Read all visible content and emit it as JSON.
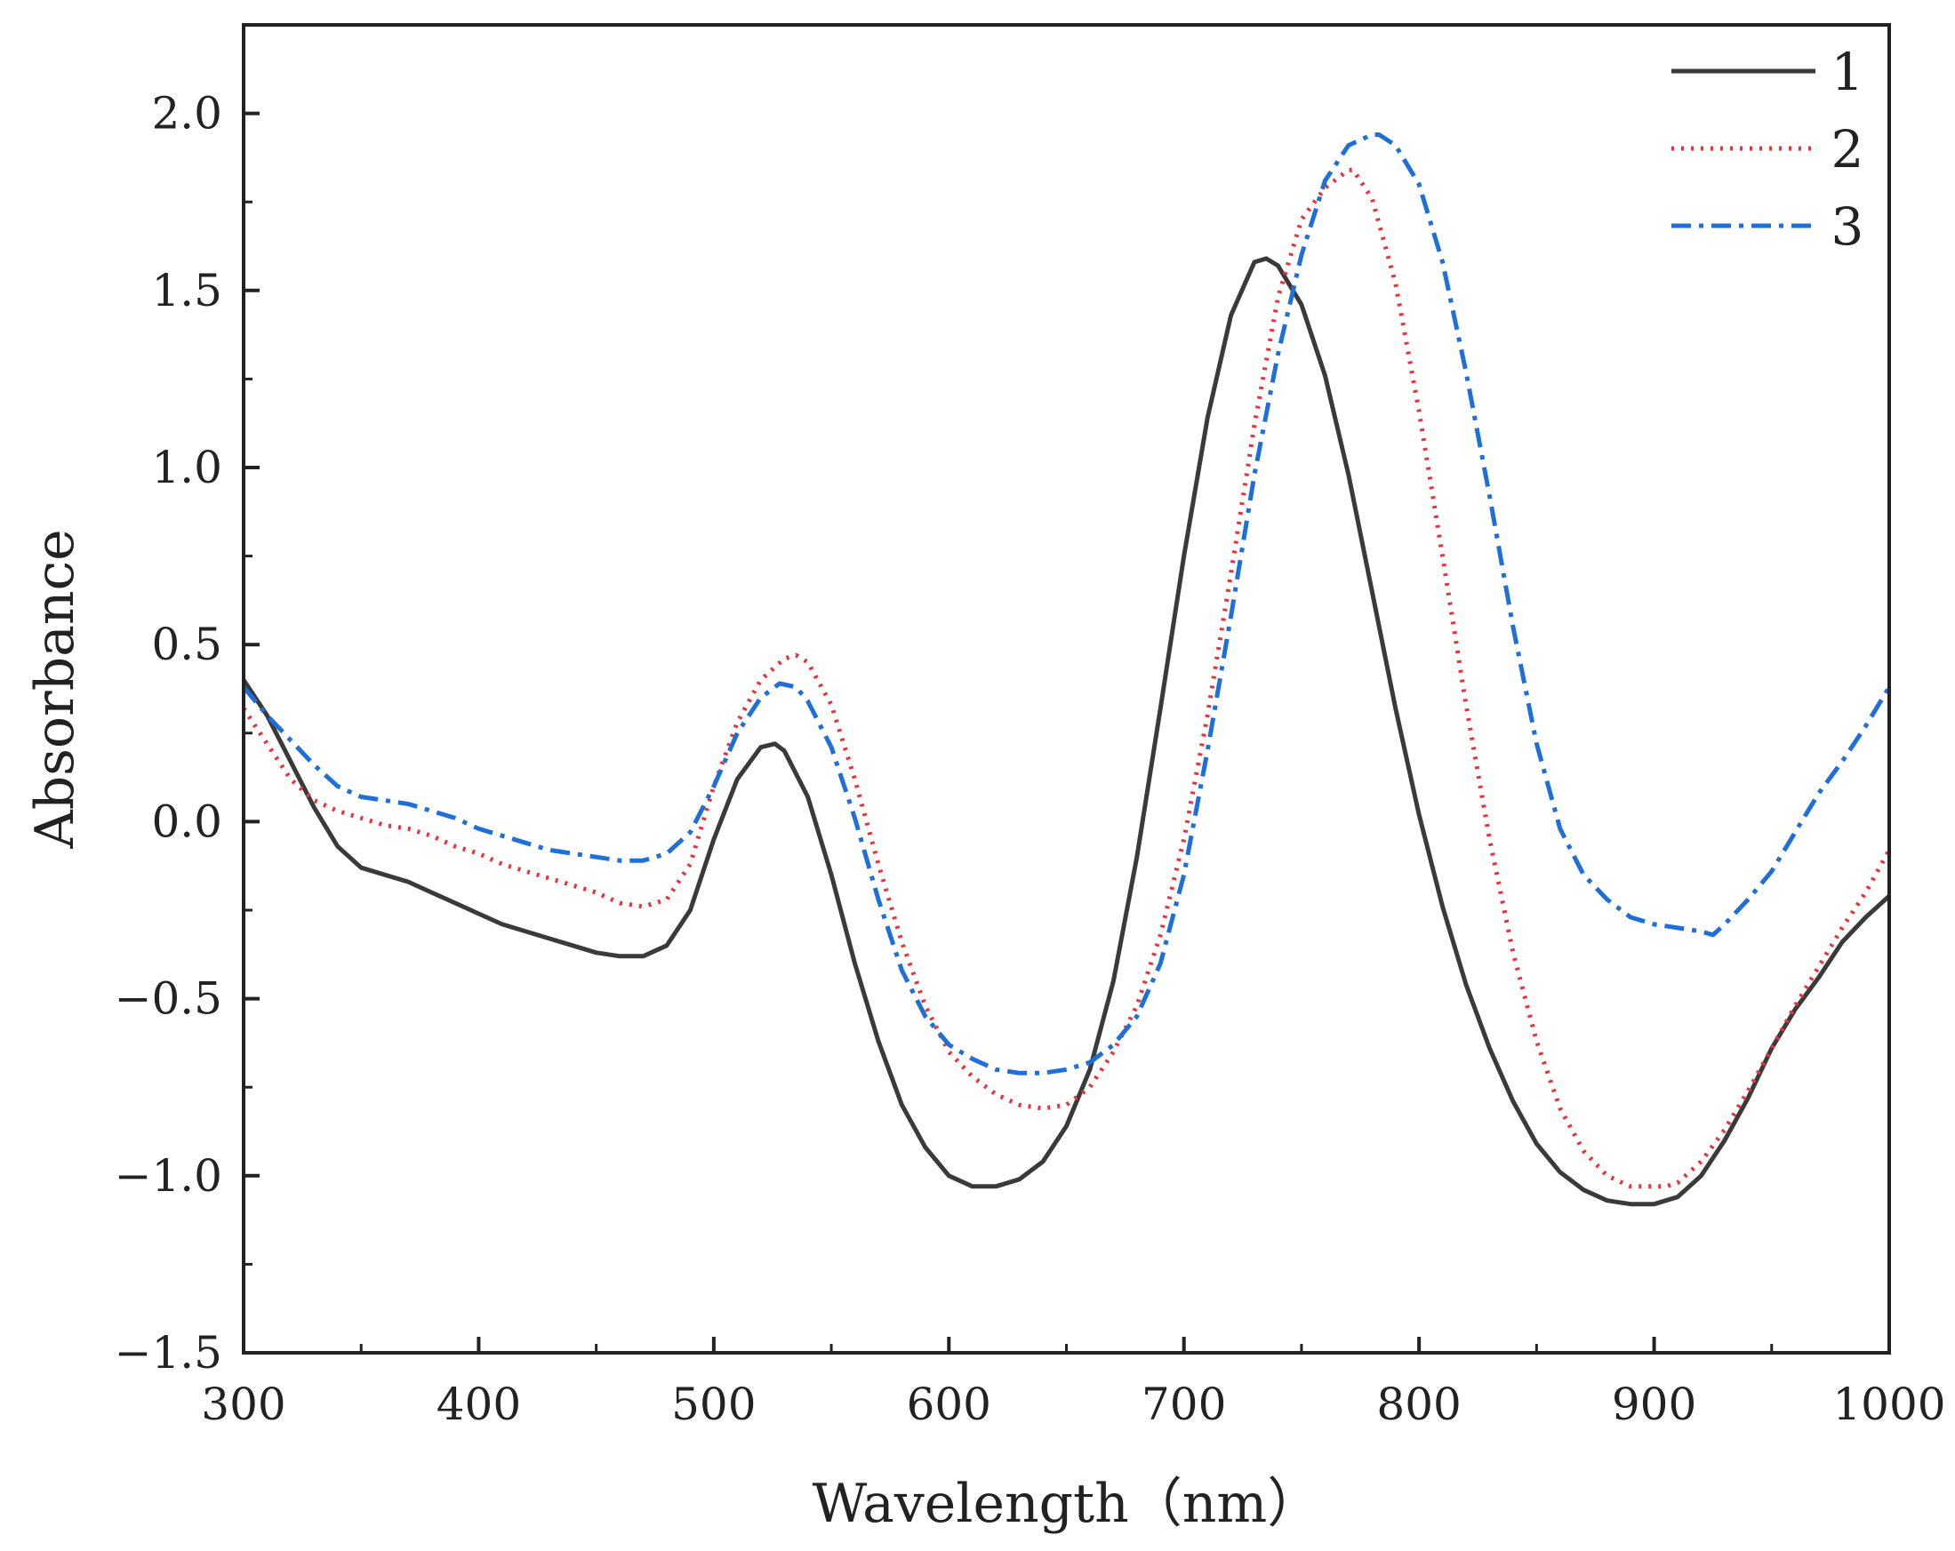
{
  "chart_data": {
    "type": "line",
    "title": "",
    "xlabel": "Wavelength（nm）",
    "ylabel": "Absorbance",
    "xlim": [
      300,
      1000
    ],
    "ylim": [
      -1.5,
      2.25
    ],
    "x_ticks": [
      300,
      400,
      500,
      600,
      700,
      800,
      900,
      1000
    ],
    "x_tick_labels": [
      "300",
      "400",
      "500",
      "600",
      "700",
      "800",
      "900",
      "1000"
    ],
    "y_ticks": [
      -1.5,
      -1.0,
      -0.5,
      0.0,
      0.5,
      1.0,
      1.5,
      2.0
    ],
    "y_tick_labels": [
      "−1.5",
      "−1.0",
      "−0.5",
      "0.0",
      "0.5",
      "1.0",
      "1.5",
      "2.0"
    ],
    "grid": false,
    "legend_position": "top-right",
    "series": [
      {
        "name": "1",
        "color": "#3a3a3a",
        "style": "solid",
        "x": [
          300,
          310,
          320,
          330,
          340,
          350,
          360,
          370,
          380,
          390,
          400,
          410,
          420,
          430,
          440,
          450,
          460,
          470,
          480,
          490,
          500,
          510,
          520,
          526,
          530,
          540,
          550,
          560,
          570,
          580,
          590,
          600,
          610,
          620,
          630,
          640,
          650,
          660,
          670,
          680,
          690,
          700,
          710,
          720,
          730,
          735,
          740,
          750,
          760,
          770,
          780,
          790,
          800,
          810,
          820,
          830,
          840,
          850,
          860,
          870,
          880,
          890,
          900,
          905,
          910,
          920,
          930,
          940,
          950,
          960,
          970,
          980,
          990,
          1000
        ],
        "values": [
          0.4,
          0.3,
          0.17,
          0.04,
          -0.07,
          -0.13,
          -0.15,
          -0.17,
          -0.2,
          -0.23,
          -0.26,
          -0.29,
          -0.31,
          -0.33,
          -0.35,
          -0.37,
          -0.38,
          -0.38,
          -0.35,
          -0.25,
          -0.05,
          0.12,
          0.21,
          0.22,
          0.2,
          0.07,
          -0.15,
          -0.4,
          -0.62,
          -0.8,
          -0.92,
          -1.0,
          -1.03,
          -1.03,
          -1.01,
          -0.96,
          -0.86,
          -0.7,
          -0.45,
          -0.1,
          0.32,
          0.75,
          1.14,
          1.43,
          1.58,
          1.59,
          1.57,
          1.46,
          1.26,
          0.98,
          0.65,
          0.32,
          0.02,
          -0.24,
          -0.46,
          -0.64,
          -0.79,
          -0.91,
          -0.99,
          -1.04,
          -1.07,
          -1.08,
          -1.08,
          -1.07,
          -1.06,
          -1.0,
          -0.9,
          -0.78,
          -0.64,
          -0.53,
          -0.44,
          -0.34,
          -0.27,
          -0.21
        ]
      },
      {
        "name": "2",
        "color": "#e8333b",
        "style": "dotted",
        "x": [
          300,
          310,
          320,
          330,
          340,
          350,
          360,
          370,
          380,
          390,
          400,
          410,
          420,
          430,
          440,
          450,
          460,
          470,
          480,
          490,
          500,
          510,
          520,
          530,
          535,
          540,
          550,
          560,
          570,
          580,
          590,
          600,
          610,
          620,
          630,
          640,
          650,
          660,
          670,
          680,
          690,
          700,
          710,
          720,
          730,
          740,
          750,
          760,
          770,
          772,
          780,
          790,
          800,
          810,
          820,
          830,
          840,
          850,
          860,
          870,
          880,
          890,
          900,
          905,
          910,
          920,
          930,
          940,
          950,
          960,
          970,
          980,
          990,
          1000
        ],
        "values": [
          0.32,
          0.22,
          0.12,
          0.06,
          0.03,
          0.01,
          -0.01,
          -0.02,
          -0.04,
          -0.07,
          -0.09,
          -0.12,
          -0.14,
          -0.16,
          -0.18,
          -0.2,
          -0.23,
          -0.24,
          -0.22,
          -0.12,
          0.1,
          0.28,
          0.4,
          0.46,
          0.47,
          0.45,
          0.33,
          0.12,
          -0.12,
          -0.34,
          -0.52,
          -0.65,
          -0.72,
          -0.77,
          -0.8,
          -0.81,
          -0.8,
          -0.75,
          -0.65,
          -0.52,
          -0.32,
          -0.05,
          0.3,
          0.7,
          1.12,
          1.48,
          1.7,
          1.79,
          1.84,
          1.84,
          1.76,
          1.52,
          1.16,
          0.75,
          0.33,
          -0.05,
          -0.37,
          -0.62,
          -0.81,
          -0.93,
          -1.0,
          -1.03,
          -1.03,
          -1.03,
          -1.02,
          -0.96,
          -0.87,
          -0.76,
          -0.64,
          -0.52,
          -0.41,
          -0.3,
          -0.2,
          -0.08
        ]
      },
      {
        "name": "3",
        "color": "#1e6fd9",
        "style": "dashdot",
        "x": [
          300,
          310,
          320,
          330,
          340,
          350,
          360,
          370,
          380,
          390,
          400,
          410,
          420,
          430,
          440,
          450,
          460,
          470,
          480,
          490,
          500,
          510,
          520,
          528,
          535,
          540,
          550,
          560,
          570,
          580,
          590,
          600,
          610,
          620,
          630,
          640,
          650,
          660,
          670,
          680,
          690,
          700,
          710,
          720,
          730,
          740,
          750,
          760,
          770,
          780,
          783,
          790,
          800,
          810,
          820,
          830,
          840,
          850,
          860,
          870,
          880,
          890,
          900,
          910,
          920,
          925,
          930,
          940,
          950,
          960,
          970,
          980,
          990,
          1000
        ],
        "values": [
          0.38,
          0.3,
          0.23,
          0.16,
          0.1,
          0.07,
          0.06,
          0.05,
          0.03,
          0.01,
          -0.02,
          -0.04,
          -0.06,
          -0.08,
          -0.09,
          -0.1,
          -0.11,
          -0.11,
          -0.09,
          -0.03,
          0.1,
          0.25,
          0.35,
          0.39,
          0.38,
          0.34,
          0.21,
          0.01,
          -0.22,
          -0.42,
          -0.55,
          -0.63,
          -0.67,
          -0.7,
          -0.71,
          -0.71,
          -0.7,
          -0.68,
          -0.63,
          -0.55,
          -0.4,
          -0.15,
          0.2,
          0.58,
          0.98,
          1.32,
          1.6,
          1.81,
          1.91,
          1.94,
          1.94,
          1.91,
          1.8,
          1.58,
          1.27,
          0.92,
          0.55,
          0.22,
          -0.02,
          -0.15,
          -0.22,
          -0.27,
          -0.29,
          -0.3,
          -0.31,
          -0.32,
          -0.29,
          -0.22,
          -0.14,
          -0.03,
          0.08,
          0.17,
          0.27,
          0.38
        ]
      }
    ]
  }
}
